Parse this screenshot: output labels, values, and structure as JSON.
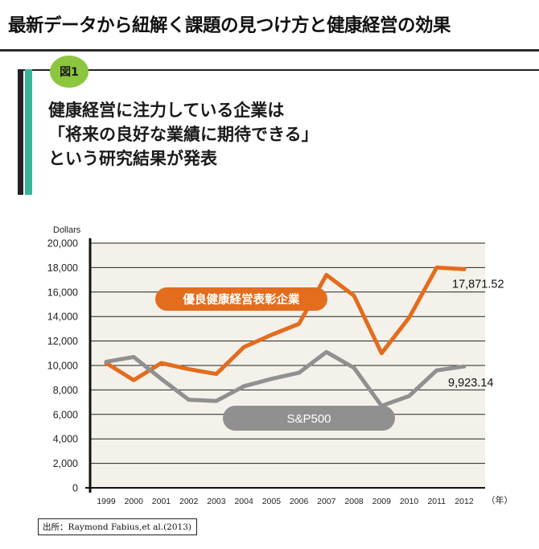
{
  "page": {
    "title": "最新データから紐解く課題の見つけ方と健康経営の効果",
    "figure_badge": "図1",
    "headline_lines": [
      "健康経営に注力している企業は",
      "「将来の良好な業績に期待できる」",
      "という研究結果が発表"
    ],
    "source": "出所：Raymond Fabius,et al.(2013)"
  },
  "colors": {
    "accent_teal": "#3bb59a",
    "badge_green": "#8cc63f",
    "series_orange": "#e36c1d",
    "series_gray": "#909090",
    "plot_bg": "#f4f1ea"
  },
  "chart_data": {
    "type": "line",
    "ylabel": "Dollars",
    "x_unit": "（年）",
    "ylim": [
      0,
      20000
    ],
    "yticks": [
      "0",
      "2,000",
      "4,000",
      "6,000",
      "8,000",
      "10,000",
      "12,000",
      "14,000",
      "16,000",
      "18,000",
      "20,000"
    ],
    "grid": true,
    "categories": [
      "1999",
      "2000",
      "2001",
      "2002",
      "2003",
      "2004",
      "2005",
      "2006",
      "2007",
      "2008",
      "2009",
      "2010",
      "2011",
      "2012"
    ],
    "series": [
      {
        "name": "優良健康経営表彰企業",
        "color": "#e36c1d",
        "values": [
          10200,
          8800,
          10200,
          9700,
          9300,
          11500,
          12500,
          13400,
          17400,
          15700,
          11000,
          13900,
          18000,
          17871.52
        ],
        "end_label": "17,871.52"
      },
      {
        "name": "S&P500",
        "color": "#909090",
        "values": [
          10300,
          10700,
          8900,
          7200,
          7100,
          8300,
          8900,
          9400,
          11100,
          9800,
          6700,
          7500,
          9600,
          9923.14
        ],
        "end_label": "9,923.14"
      }
    ]
  }
}
